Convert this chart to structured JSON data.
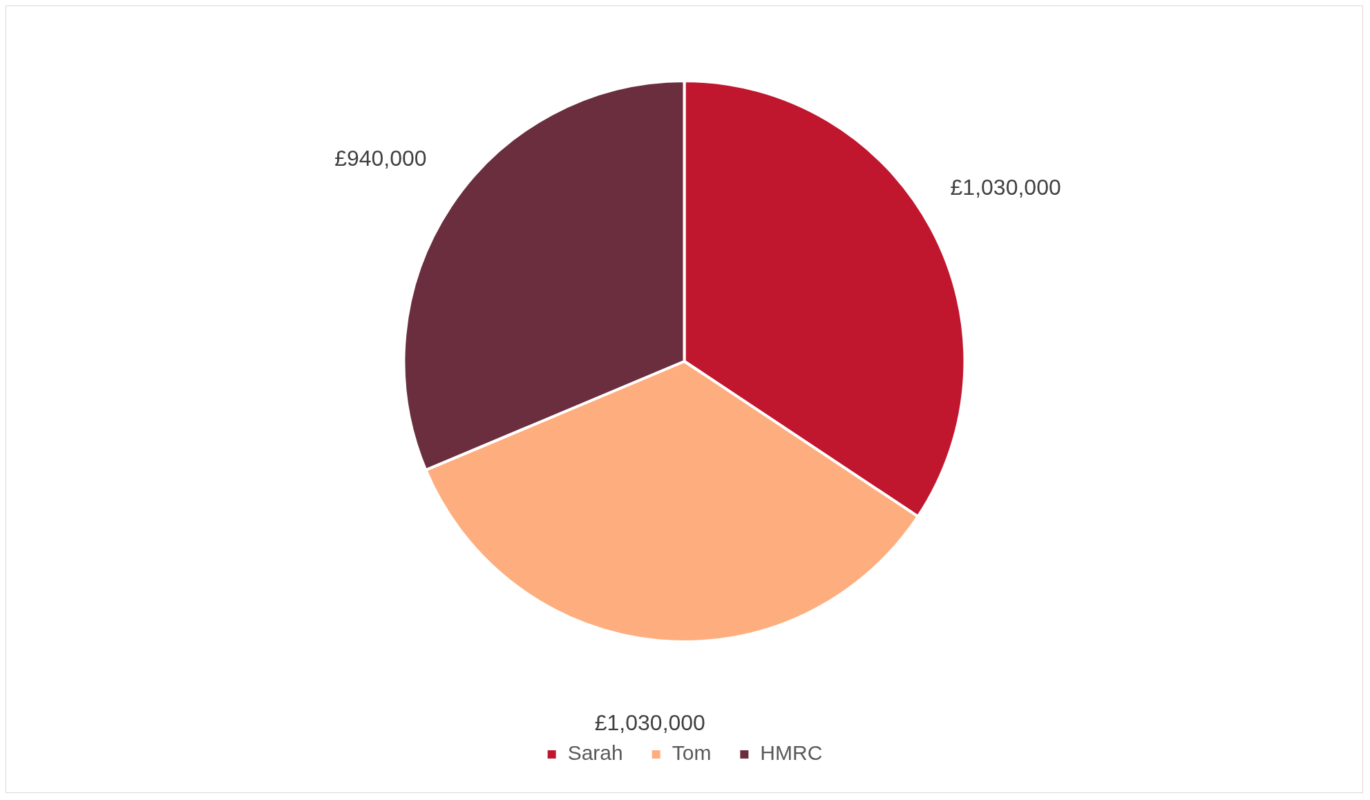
{
  "chart_data": {
    "type": "pie",
    "categories": [
      "Sarah",
      "Tom",
      "HMRC"
    ],
    "values": [
      1030000,
      1030000,
      940000
    ],
    "colors": [
      "#c0172f",
      "#feae7e",
      "#6a2e3e"
    ],
    "value_labels": [
      "£1,030,000",
      "£1,030,000",
      "£940,000"
    ],
    "legend": "bottom"
  }
}
